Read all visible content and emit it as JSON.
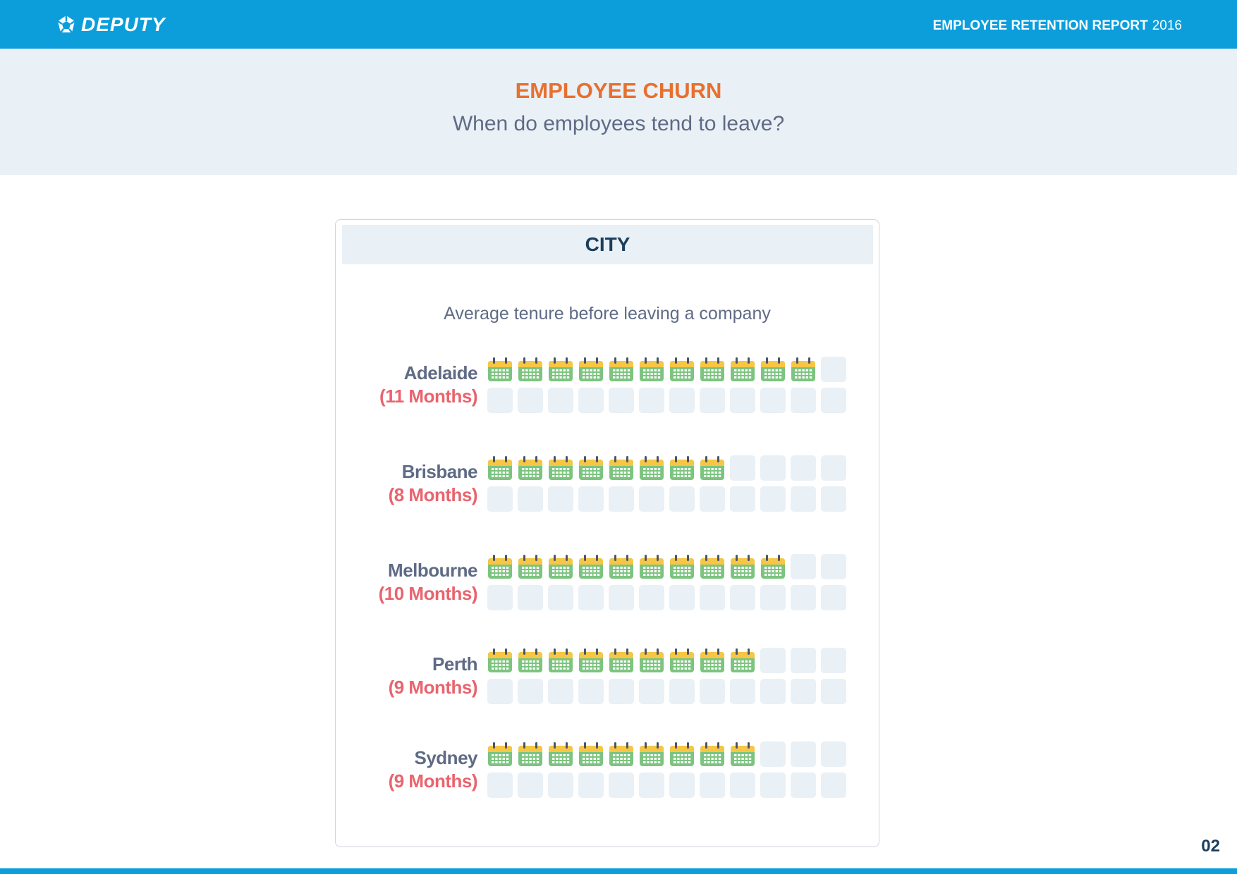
{
  "header": {
    "logo_text": "DEPUTY",
    "report_title": "EMPLOYEE RETENTION REPORT",
    "report_year": "2016"
  },
  "banner": {
    "title": "EMPLOYEE CHURN",
    "subtitle": "When do employees tend to leave?"
  },
  "card": {
    "header": "CITY",
    "caption": "Average tenure before leaving a company"
  },
  "chart_data": {
    "type": "pictograph",
    "title": "Average tenure before leaving a company",
    "category_header": "CITY",
    "unit": "Months",
    "cells_per_city": 24,
    "categories": [
      "Adelaide",
      "Brisbane",
      "Melbourne",
      "Perth",
      "Sydney"
    ],
    "values": [
      11,
      8,
      10,
      9,
      9
    ],
    "labels": [
      "(11 Months)",
      "(8 Months)",
      "(10 Months)",
      "(9 Months)",
      "(9 Months)"
    ],
    "colors": {
      "calendar_body": "#7cc47f",
      "calendar_top": "#f6c644",
      "empty_cell": "#e9f0f6",
      "city_label": "#5f6b85",
      "months_label": "#e8646e"
    }
  },
  "page_number": "02",
  "icons": {
    "logo": "deputy-logo-icon",
    "filled_cell": "calendar-icon"
  }
}
